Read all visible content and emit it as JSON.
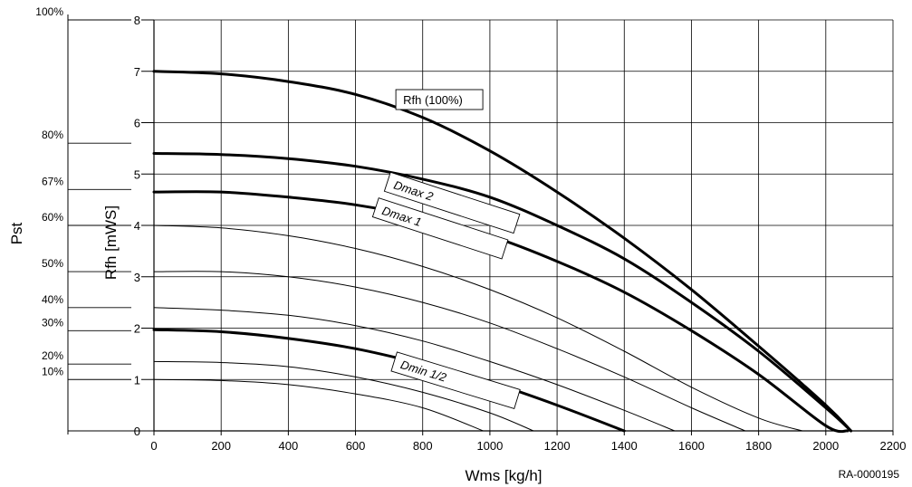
{
  "chart_data": {
    "type": "line",
    "xlabel": "Wms [kg/h]",
    "ylabel": "Rfh [mWS]",
    "ylabel_left": "Pst",
    "reference": "RA-0000195",
    "xlim": [
      0,
      2200
    ],
    "ylim": [
      0,
      8
    ],
    "x_ticks": [
      "0",
      "200",
      "400",
      "600",
      "800",
      "1000",
      "1200",
      "1400",
      "1600",
      "1800",
      "2000",
      "2200"
    ],
    "y_ticks": [
      "0",
      "1",
      "2",
      "3",
      "4",
      "5",
      "6",
      "7",
      "8"
    ],
    "grid": true,
    "pst_scale": [
      {
        "label": "100%",
        "value": 8.0
      },
      {
        "label": "80%",
        "value": 5.6
      },
      {
        "label": "67%",
        "value": 4.7
      },
      {
        "label": "60%",
        "value": 4.0
      },
      {
        "label": "50%",
        "value": 3.1
      },
      {
        "label": "40%",
        "value": 2.4
      },
      {
        "label": "30%",
        "value": 1.95
      },
      {
        "label": "20%",
        "value": 1.3
      },
      {
        "label": "10%",
        "value": 1.0
      }
    ],
    "series": [
      {
        "name": "Rfh (100%)",
        "bold": true,
        "x": [
          0,
          200,
          400,
          600,
          800,
          1000,
          1200,
          1400,
          1600,
          1800,
          2000,
          2075
        ],
        "y": [
          7.0,
          6.95,
          6.8,
          6.55,
          6.1,
          5.45,
          4.65,
          3.75,
          2.75,
          1.65,
          0.5,
          0
        ]
      },
      {
        "name": "Dmax 2",
        "bold": true,
        "x": [
          0,
          200,
          400,
          600,
          800,
          1000,
          1200,
          1400,
          1600,
          1800,
          2000,
          2075
        ],
        "y": [
          5.4,
          5.38,
          5.3,
          5.15,
          4.9,
          4.55,
          4.0,
          3.35,
          2.5,
          1.55,
          0.45,
          0
        ]
      },
      {
        "name": "Dmax 1",
        "bold": true,
        "x": [
          0,
          200,
          400,
          600,
          800,
          1000,
          1200,
          1400,
          1600,
          1800,
          2000,
          2065
        ],
        "y": [
          4.65,
          4.65,
          4.55,
          4.4,
          4.15,
          3.8,
          3.3,
          2.7,
          1.95,
          1.1,
          0.1,
          0
        ]
      },
      {
        "name": "Dmin 1/2",
        "bold": true,
        "x": [
          0,
          200,
          400,
          600,
          800,
          1000,
          1200,
          1400
        ],
        "y": [
          1.97,
          1.93,
          1.8,
          1.6,
          1.3,
          0.95,
          0.5,
          0
        ]
      },
      {
        "bold": false,
        "x": [
          0,
          200,
          400,
          600,
          800,
          1000,
          1200,
          1400,
          1600,
          1800,
          1930
        ],
        "y": [
          4.0,
          3.95,
          3.8,
          3.55,
          3.2,
          2.75,
          2.2,
          1.55,
          0.85,
          0.25,
          0
        ]
      },
      {
        "bold": false,
        "x": [
          0,
          200,
          400,
          600,
          800,
          1000,
          1200,
          1400,
          1600,
          1760
        ],
        "y": [
          3.1,
          3.1,
          3.0,
          2.8,
          2.5,
          2.1,
          1.6,
          1.05,
          0.45,
          0
        ]
      },
      {
        "bold": false,
        "x": [
          0,
          200,
          400,
          600,
          800,
          1000,
          1200,
          1400,
          1550
        ],
        "y": [
          2.4,
          2.35,
          2.25,
          2.05,
          1.75,
          1.35,
          0.9,
          0.4,
          0
        ]
      },
      {
        "bold": false,
        "x": [
          0,
          200,
          400,
          600,
          800,
          1000,
          1130
        ],
        "y": [
          1.35,
          1.33,
          1.25,
          1.05,
          0.75,
          0.35,
          0
        ]
      },
      {
        "bold": false,
        "x": [
          0,
          200,
          400,
          600,
          800,
          980
        ],
        "y": [
          1.0,
          0.98,
          0.9,
          0.72,
          0.45,
          0
        ]
      }
    ],
    "annotations": [
      {
        "text": "Rfh (100%)",
        "x": 720,
        "y": 6.45
      },
      {
        "text": "Dmax 2",
        "x": 695,
        "y": 4.85
      },
      {
        "text": "Dmax 1",
        "x": 660,
        "y": 4.35
      },
      {
        "text": "Dmin 1/2",
        "x": 715,
        "y": 1.35
      }
    ]
  }
}
